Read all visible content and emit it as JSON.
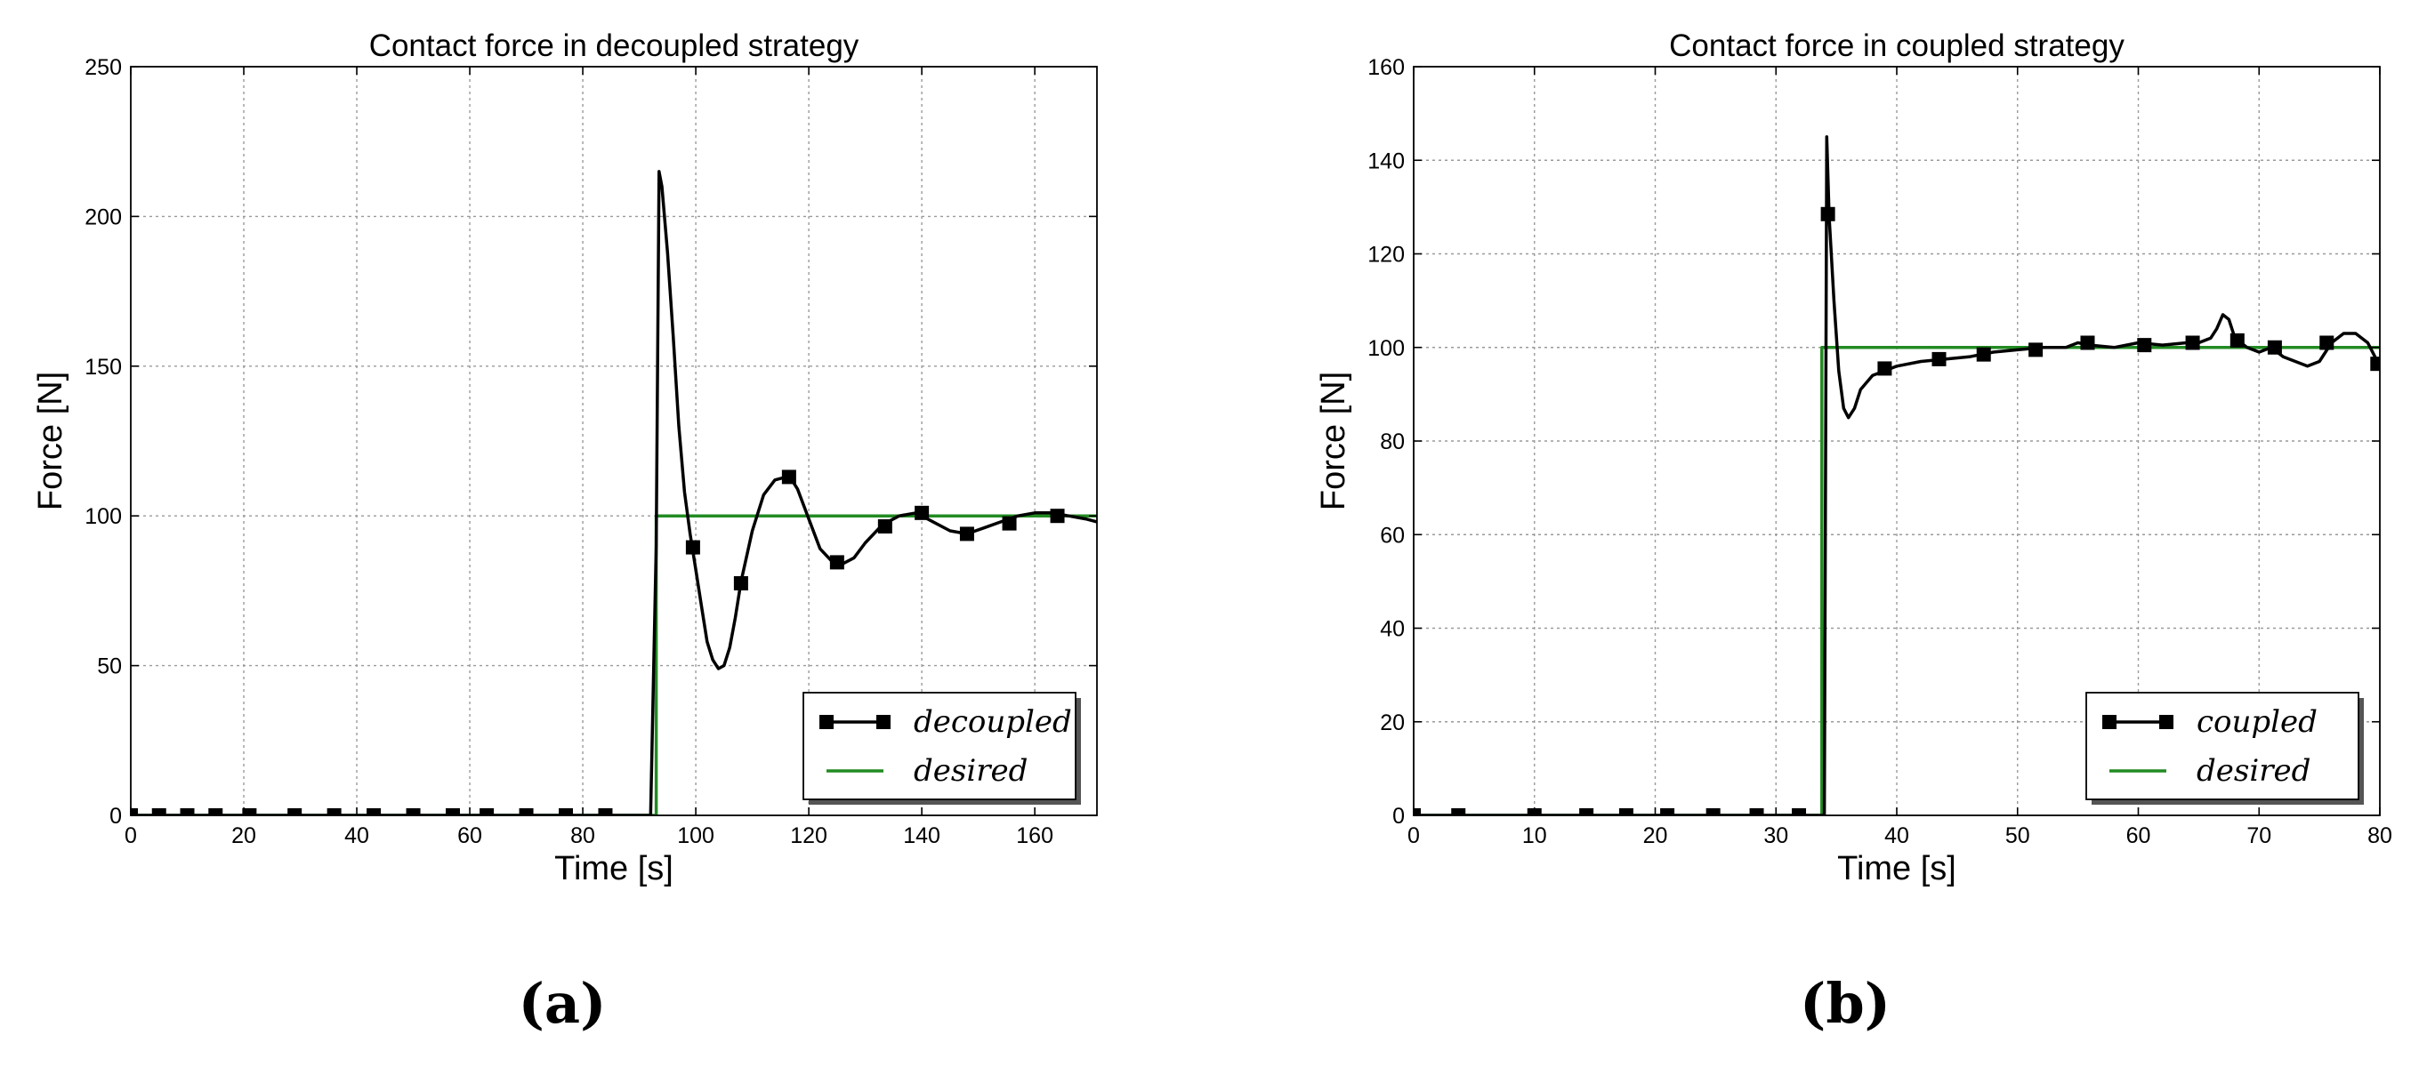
{
  "panels": [
    {
      "label": "(a)"
    },
    {
      "label": "(b)"
    }
  ],
  "colors": {
    "measured": "#000000",
    "desired": "#228b22"
  },
  "chart_data": [
    {
      "type": "line",
      "title": "Contact force in decoupled strategy",
      "xlabel": "Time [s]",
      "ylabel": "Force [N]",
      "xlim": [
        0,
        171
      ],
      "ylim": [
        0,
        250
      ],
      "xticks": [
        0,
        20,
        40,
        60,
        80,
        100,
        120,
        140,
        160
      ],
      "yticks": [
        0,
        50,
        100,
        150,
        200,
        250
      ],
      "grid": true,
      "legend_position": "bottom-right",
      "series": [
        {
          "name": "decoupled",
          "color": "#000000",
          "marker": "square",
          "x": [
            0,
            4,
            8,
            12,
            16,
            20,
            24,
            28,
            32,
            36,
            40,
            44,
            48,
            52,
            56,
            60,
            64,
            68,
            72,
            76,
            80,
            84,
            88,
            92,
            93,
            93.5,
            94,
            95,
            96,
            97,
            98,
            99,
            100,
            101,
            102,
            103,
            104,
            105,
            106,
            107,
            108,
            110,
            112,
            114,
            116,
            117,
            118,
            120,
            122,
            124,
            126,
            128,
            130,
            133,
            136,
            139,
            142,
            145,
            148,
            151,
            154,
            157,
            160,
            163,
            166,
            169,
            171
          ],
          "y": [
            0,
            0,
            0,
            0,
            0,
            0,
            0,
            0,
            0,
            0,
            0,
            0,
            0,
            0,
            0,
            0,
            0,
            0,
            0,
            0,
            0,
            0,
            0,
            0,
            90,
            215,
            210,
            188,
            160,
            130,
            108,
            94,
            82,
            70,
            58,
            52,
            49,
            50,
            56,
            66,
            78,
            95,
            107,
            112,
            113,
            112,
            109,
            99,
            89,
            85,
            84,
            86,
            91,
            97,
            100,
            101,
            98,
            95,
            94,
            96,
            98,
            100,
            101,
            101,
            100,
            99,
            98
          ],
          "markers_x": [
            0,
            5,
            10,
            15,
            21,
            29,
            36,
            43,
            50,
            57,
            63,
            70,
            77,
            84,
            99.5,
            108,
            116.5,
            125,
            133.5,
            140,
            148,
            155.5,
            164
          ],
          "markers_y": [
            0,
            0,
            0,
            0,
            0,
            0,
            0,
            0,
            0,
            0,
            0,
            0,
            0,
            0,
            89.5,
            77.5,
            113,
            84.5,
            96.5,
            101,
            94,
            97.5,
            100
          ]
        },
        {
          "name": "desired",
          "color": "#228b22",
          "x": [
            0,
            93,
            93,
            171
          ],
          "y": [
            0,
            0,
            100,
            100
          ]
        }
      ]
    },
    {
      "type": "line",
      "title": "Contact force in coupled strategy",
      "xlabel": "Time [s]",
      "ylabel": "Force [N]",
      "xlim": [
        0,
        80
      ],
      "ylim": [
        0,
        160
      ],
      "xticks": [
        0,
        10,
        20,
        30,
        40,
        50,
        60,
        70,
        80
      ],
      "yticks": [
        0,
        20,
        40,
        60,
        80,
        100,
        120,
        140,
        160
      ],
      "grid": true,
      "legend_position": "bottom-right",
      "series": [
        {
          "name": "coupled",
          "color": "#000000",
          "marker": "square",
          "x": [
            0,
            5,
            10,
            15,
            20,
            25,
            30,
            33,
            34,
            34.2,
            34.4,
            34.8,
            35.2,
            35.6,
            36,
            36.5,
            37,
            38,
            39,
            40,
            42,
            44,
            46,
            48,
            50,
            52,
            54,
            55,
            56,
            58,
            60,
            62,
            64,
            65,
            66,
            66.5,
            67,
            67.5,
            68,
            69,
            70,
            71,
            72,
            73,
            74,
            75,
            76,
            77,
            78,
            79,
            80
          ],
          "y": [
            0,
            0,
            0,
            0,
            0,
            0,
            0,
            0,
            0,
            145,
            128,
            110,
            95,
            87,
            85,
            87,
            91,
            94,
            95,
            96,
            97,
            97.5,
            98,
            99,
            99.5,
            100,
            100,
            101,
            100.5,
            100,
            101,
            100.5,
            101,
            101,
            102,
            104,
            107,
            106,
            102,
            100,
            99,
            100,
            98,
            97,
            96,
            97,
            101,
            103,
            103,
            101,
            96
          ],
          "markers_x": [
            0,
            3.7,
            10,
            14.3,
            17.6,
            21,
            24.8,
            28.4,
            31.9,
            34.3,
            39,
            43.5,
            47.2,
            51.5,
            55.8,
            60.5,
            64.5,
            68.2,
            71.3,
            75.6,
            79.8
          ],
          "markers_y": [
            0,
            0,
            0,
            0,
            0,
            0,
            0,
            0,
            0,
            128.5,
            95.5,
            97.5,
            98.5,
            99.5,
            101,
            100.5,
            101,
            101.5,
            100,
            101,
            96.5
          ]
        },
        {
          "name": "desired",
          "color": "#228b22",
          "x": [
            0,
            33.8,
            33.8,
            80
          ],
          "y": [
            0,
            0,
            100,
            100
          ]
        }
      ]
    }
  ]
}
